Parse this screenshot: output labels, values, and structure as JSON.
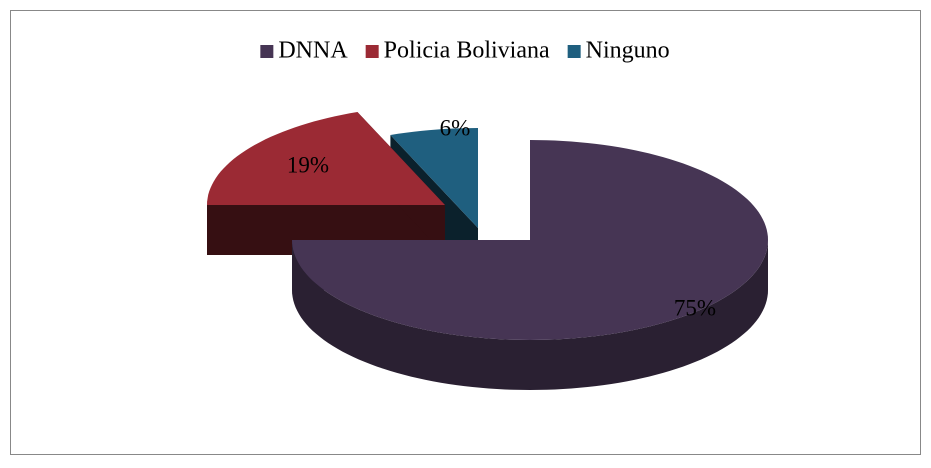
{
  "chart_data": {
    "type": "pie",
    "categories": [
      "DNNA",
      "Policia Boliviana",
      "Ninguno"
    ],
    "values": [
      75,
      19,
      6
    ],
    "value_labels": [
      "75%",
      "19%",
      "6%"
    ],
    "colors": [
      "#463554",
      "#9b2a34",
      "#1f5f7f"
    ],
    "legend": "top"
  }
}
